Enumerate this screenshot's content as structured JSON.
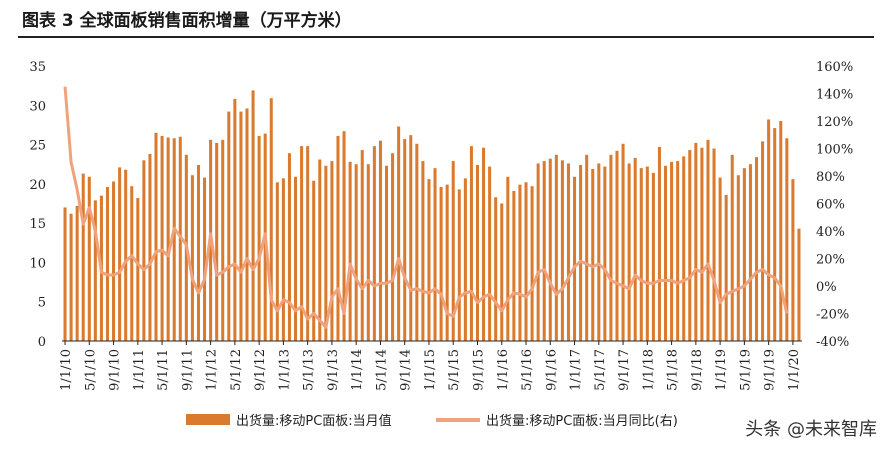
{
  "header": {
    "title": "图表 3 全球面板销售面积增量（万平方米）"
  },
  "watermark": "头条 @未来智库",
  "chart_data": {
    "type": "bar+line",
    "title": "图表 3 全球面板销售面积增量（万平方米）",
    "x_tick_labels": [
      "1/1/10",
      "5/1/10",
      "9/1/10",
      "1/1/11",
      "5/1/11",
      "9/1/11",
      "1/1/12",
      "5/1/12",
      "9/1/12",
      "1/1/13",
      "5/1/13",
      "9/1/13",
      "1/1/14",
      "5/1/14",
      "9/1/14",
      "1/1/15",
      "5/1/15",
      "9/1/15",
      "1/1/16",
      "5/1/16",
      "9/1/16",
      "1/1/17",
      "5/1/17",
      "9/1/17",
      "1/1/18",
      "5/1/18",
      "9/1/18",
      "1/1/19",
      "5/1/19",
      "9/1/19",
      "1/1/20"
    ],
    "y_left": {
      "ticks": [
        0,
        5,
        10,
        15,
        20,
        25,
        30,
        35
      ],
      "ylim": [
        0,
        35
      ]
    },
    "y_right": {
      "ticks": [
        "160%",
        "140%",
        "120%",
        "100%",
        "80%",
        "60%",
        "40%",
        "20%",
        "0%",
        "-20%",
        "-40%"
      ],
      "ylim": [
        -40,
        160
      ]
    },
    "series": [
      {
        "name": "出货量:移动PC面板:当月值",
        "type": "bar",
        "axis": "left",
        "color": "#d97a2e",
        "values": [
          17.0,
          16.2,
          17.2,
          21.3,
          20.9,
          17.9,
          18.5,
          19.6,
          20.3,
          22.1,
          21.8,
          19.7,
          18.2,
          23.0,
          23.8,
          26.5,
          26.1,
          25.9,
          25.8,
          26.0,
          23.7,
          21.1,
          22.4,
          20.8,
          25.6,
          25.2,
          25.6,
          29.2,
          30.8,
          29.2,
          29.6,
          31.9,
          26.1,
          26.4,
          30.9,
          20.2,
          20.7,
          23.9,
          20.9,
          24.8,
          24.8,
          20.4,
          23.1,
          22.3,
          22.9,
          26.1,
          26.7,
          22.8,
          22.5,
          24.3,
          22.5,
          24.8,
          25.5,
          22.3,
          23.9,
          27.3,
          25.7,
          26.2,
          25.1,
          22.9,
          20.6,
          22.0,
          19.6,
          19.9,
          22.9,
          19.3,
          20.7,
          24.8,
          22.4,
          24.6,
          22.2,
          18.3,
          17.5,
          20.9,
          19.1,
          19.9,
          20.2,
          19.7,
          22.6,
          22.9,
          23.2,
          23.7,
          23.0,
          22.6,
          20.9,
          22.4,
          23.7,
          21.9,
          22.6,
          22.2,
          23.7,
          24.2,
          25.1,
          22.6,
          23.3,
          22.0,
          22.2,
          21.4,
          24.7,
          22.3,
          22.8,
          22.9,
          23.5,
          24.3,
          25.2,
          24.6,
          25.6,
          24.5,
          20.8,
          18.6,
          23.7,
          21.1,
          22.0,
          22.5,
          23.4,
          25.4,
          28.2,
          27.1,
          28.0,
          25.8,
          20.6,
          14.3
        ]
      },
      {
        "name": "出货量:移动PC面板:当月同比(右)",
        "type": "line",
        "axis": "right",
        "color": "#f0a27c",
        "values": [
          145,
          90,
          70,
          45,
          57,
          40,
          10,
          8,
          8,
          10,
          18,
          22,
          16,
          12,
          16,
          25,
          26,
          22,
          42,
          36,
          30,
          5,
          -5,
          5,
          38,
          8,
          10,
          14,
          16,
          10,
          20,
          12,
          20,
          38,
          -10,
          -18,
          -10,
          -12,
          -18,
          -15,
          -24,
          -20,
          -25,
          -30,
          -8,
          -2,
          -20,
          16,
          5,
          -2,
          4,
          0,
          2,
          2,
          4,
          20,
          6,
          -3,
          -2,
          -4,
          -5,
          -2,
          -6,
          -20,
          -22,
          -8,
          -5,
          -4,
          -12,
          -8,
          -6,
          -12,
          -18,
          -10,
          -5,
          -6,
          -8,
          -2,
          10,
          12,
          2,
          -6,
          -2,
          6,
          14,
          18,
          16,
          14,
          16,
          12,
          4,
          2,
          0,
          -2,
          8,
          4,
          2,
          2,
          4,
          4,
          4,
          2,
          4,
          6,
          12,
          10,
          16,
          4,
          -12,
          -6,
          -4,
          -2,
          0,
          5,
          10,
          12,
          8,
          6,
          0,
          -20
        ]
      }
    ],
    "legend": {
      "position": "bottom"
    }
  }
}
